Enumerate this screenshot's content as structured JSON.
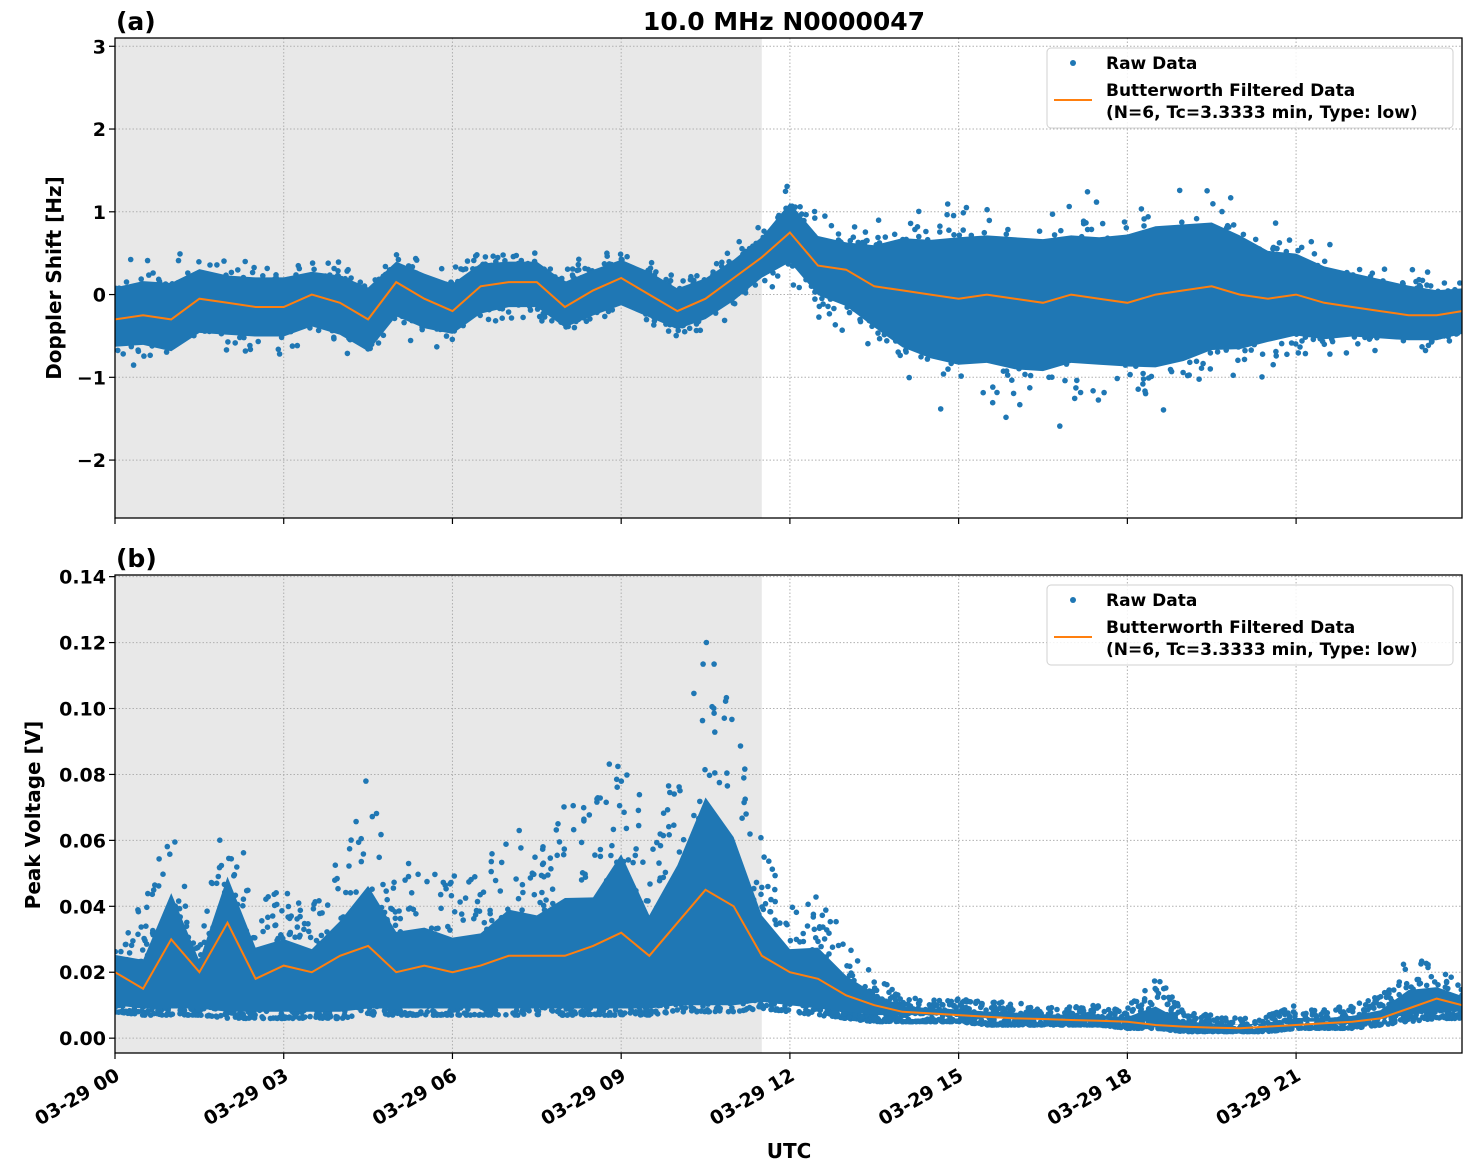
{
  "chart_data": [
    {
      "type": "scatter+line",
      "panel_label": "(a)",
      "title": "10.0 MHz N0000047",
      "ylabel": "Doppler Shift [Hz]",
      "xlabel": "",
      "xlim_hours": [
        0,
        23.95
      ],
      "ylim": [
        -2.7,
        3.1
      ],
      "yticks": [
        -2,
        -1,
        0,
        1,
        2,
        3
      ],
      "ytick_labels": [
        "−2",
        "−1",
        "0",
        "1",
        "2",
        "3"
      ],
      "grid": true,
      "shaded_region_hours": [
        0,
        11.5
      ],
      "legend_placement": "top-right",
      "legend": [
        "Raw Data",
        "Butterworth Filtered Data",
        "(N=6, Tc=3.3333 min, Type: low)"
      ],
      "x_hours": [
        0,
        0.5,
        1,
        1.5,
        2,
        2.5,
        3,
        3.5,
        4,
        4.5,
        5,
        5.5,
        6,
        6.5,
        7,
        7.5,
        8,
        8.5,
        9,
        9.5,
        10,
        10.5,
        11,
        11.5,
        12,
        12.5,
        13,
        13.5,
        14,
        14.5,
        15,
        15.5,
        16,
        16.5,
        17,
        17.5,
        18,
        18.5,
        19,
        19.5,
        20,
        20.5,
        21,
        21.5,
        22,
        22.5,
        23,
        23.5,
        23.95
      ],
      "filtered": [
        -0.3,
        -0.25,
        -0.3,
        -0.05,
        -0.1,
        -0.15,
        -0.15,
        0.0,
        -0.1,
        -0.3,
        0.15,
        -0.05,
        -0.2,
        0.1,
        0.15,
        0.15,
        -0.15,
        0.05,
        0.2,
        0.0,
        -0.2,
        -0.05,
        0.2,
        0.45,
        0.75,
        0.35,
        0.3,
        0.1,
        0.05,
        0.0,
        -0.05,
        0.0,
        -0.05,
        -0.1,
        0.0,
        -0.05,
        -0.1,
        0.0,
        0.05,
        0.1,
        0.0,
        -0.05,
        0.0,
        -0.1,
        -0.15,
        -0.2,
        -0.25,
        -0.25,
        -0.2
      ],
      "raw_lower": [
        -0.9,
        -0.9,
        -1.0,
        -0.8,
        -0.8,
        -0.8,
        -0.8,
        -0.7,
        -0.8,
        -1.0,
        -0.6,
        -0.7,
        -0.7,
        -0.5,
        -0.4,
        -0.4,
        -0.6,
        -0.5,
        -0.4,
        -0.5,
        -0.6,
        -0.5,
        -0.3,
        0.0,
        0.1,
        -0.3,
        -0.5,
        -0.8,
        -1.2,
        -1.4,
        -1.5,
        -1.5,
        -1.6,
        -1.6,
        -1.5,
        -1.5,
        -1.5,
        -1.6,
        -1.5,
        -1.3,
        -1.2,
        -1.0,
        -0.9,
        -0.9,
        -0.8,
        -0.8,
        -0.8,
        -0.8,
        -0.7
      ],
      "raw_upper": [
        0.4,
        0.5,
        0.5,
        0.6,
        0.5,
        0.5,
        0.5,
        0.5,
        0.5,
        0.4,
        0.6,
        0.5,
        0.4,
        0.6,
        0.6,
        0.6,
        0.4,
        0.5,
        0.6,
        0.5,
        0.3,
        0.4,
        0.6,
        0.9,
        1.4,
        1.0,
        0.9,
        1.0,
        1.2,
        1.2,
        1.3,
        1.3,
        1.3,
        1.3,
        1.3,
        1.3,
        1.4,
        1.5,
        1.5,
        1.5,
        1.3,
        1.0,
        0.9,
        0.7,
        0.6,
        0.5,
        0.4,
        0.3,
        0.3
      ]
    },
    {
      "type": "scatter+line",
      "panel_label": "(b)",
      "ylabel": "Peak Voltage [V]",
      "xlabel": "UTC",
      "xlim_hours": [
        0,
        23.95
      ],
      "ylim": [
        -0.0045,
        0.1405
      ],
      "yticks": [
        0,
        0.02,
        0.04,
        0.06,
        0.08,
        0.1,
        0.12,
        0.14
      ],
      "ytick_labels": [
        "0.00",
        "0.02",
        "0.04",
        "0.06",
        "0.08",
        "0.10",
        "0.12",
        "0.14"
      ],
      "xticks_hours": [
        0,
        3,
        6,
        9,
        12,
        15,
        18,
        21
      ],
      "xtick_labels": [
        "03-29 00",
        "03-29 03",
        "03-29 06",
        "03-29 09",
        "03-29 12",
        "03-29 15",
        "03-29 18",
        "03-29 21"
      ],
      "grid": true,
      "shaded_region_hours": [
        0,
        11.5
      ],
      "legend_placement": "top-right",
      "legend": [
        "Raw Data",
        "Butterworth Filtered Data",
        "(N=6, Tc=3.3333 min, Type: low)"
      ],
      "x_hours": [
        0,
        0.5,
        1,
        1.5,
        2,
        2.5,
        3,
        3.5,
        4,
        4.5,
        5,
        5.5,
        6,
        6.5,
        7,
        7.5,
        8,
        8.5,
        9,
        9.5,
        10,
        10.5,
        11,
        11.5,
        12,
        12.5,
        13,
        13.5,
        14,
        14.5,
        15,
        15.5,
        16,
        16.5,
        17,
        17.5,
        18,
        18.5,
        19,
        19.5,
        20,
        20.5,
        21,
        21.5,
        22,
        22.5,
        23,
        23.5,
        23.95
      ],
      "filtered": [
        0.02,
        0.015,
        0.03,
        0.02,
        0.035,
        0.018,
        0.022,
        0.02,
        0.025,
        0.028,
        0.02,
        0.022,
        0.02,
        0.022,
        0.025,
        0.025,
        0.025,
        0.028,
        0.032,
        0.025,
        0.035,
        0.045,
        0.04,
        0.025,
        0.02,
        0.018,
        0.013,
        0.01,
        0.008,
        0.0075,
        0.007,
        0.0065,
        0.006,
        0.0058,
        0.0055,
        0.0053,
        0.005,
        0.004,
        0.0035,
        0.0032,
        0.003,
        0.0035,
        0.004,
        0.0045,
        0.005,
        0.006,
        0.009,
        0.012,
        0.01
      ],
      "raw_lower": [
        0.008,
        0.007,
        0.007,
        0.007,
        0.006,
        0.006,
        0.006,
        0.006,
        0.006,
        0.007,
        0.007,
        0.007,
        0.007,
        0.007,
        0.007,
        0.007,
        0.007,
        0.007,
        0.007,
        0.007,
        0.008,
        0.008,
        0.008,
        0.009,
        0.008,
        0.007,
        0.006,
        0.005,
        0.005,
        0.005,
        0.005,
        0.004,
        0.004,
        0.004,
        0.004,
        0.004,
        0.003,
        0.003,
        0.002,
        0.002,
        0.002,
        0.002,
        0.003,
        0.003,
        0.003,
        0.004,
        0.005,
        0.006,
        0.006
      ],
      "raw_upper": [
        0.035,
        0.04,
        0.07,
        0.03,
        0.075,
        0.045,
        0.045,
        0.04,
        0.055,
        0.08,
        0.055,
        0.055,
        0.05,
        0.05,
        0.065,
        0.06,
        0.075,
        0.07,
        0.1,
        0.06,
        0.085,
        0.125,
        0.1,
        0.06,
        0.04,
        0.045,
        0.03,
        0.02,
        0.013,
        0.012,
        0.012,
        0.011,
        0.011,
        0.01,
        0.01,
        0.01,
        0.009,
        0.02,
        0.008,
        0.007,
        0.006,
        0.007,
        0.01,
        0.009,
        0.01,
        0.013,
        0.025,
        0.022,
        0.018
      ]
    }
  ],
  "colors": {
    "raw": "#1f77b4",
    "filtered": "#ff7f0e",
    "shade": "#e8e8e8",
    "grid": "#b0b0b0"
  }
}
